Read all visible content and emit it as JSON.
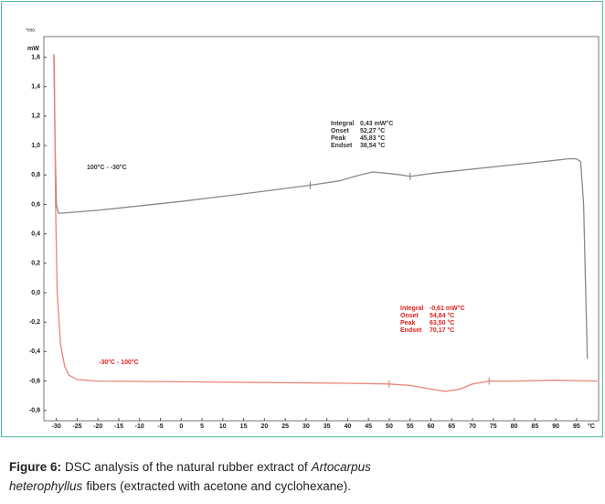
{
  "chart_data": {
    "type": "line",
    "y_unit": "mW",
    "exo_label": "°exo",
    "x_unit": "°C",
    "xlim": [
      -33,
      100.3
    ],
    "ylim": [
      -0.87,
      1.74
    ],
    "xticks": [
      -30,
      -25,
      -20,
      -15,
      -10,
      -5,
      0,
      5,
      10,
      15,
      20,
      25,
      30,
      35,
      40,
      45,
      50,
      55,
      60,
      65,
      70,
      75,
      80,
      85,
      90,
      95
    ],
    "yticks": [
      {
        "value": -0.8,
        "label": "-0,8"
      },
      {
        "value": -0.6,
        "label": "-0,6"
      },
      {
        "value": -0.4,
        "label": "-0,4"
      },
      {
        "value": -0.2,
        "label": "-0,2"
      },
      {
        "value": 0,
        "label": "0,0"
      },
      {
        "value": 0.2,
        "label": "0,2"
      },
      {
        "value": 0.4,
        "label": "0,4"
      },
      {
        "value": 0.6,
        "label": "0,6"
      },
      {
        "value": 0.8,
        "label": "0,8"
      },
      {
        "value": 1.0,
        "label": "1,0"
      },
      {
        "value": 1.2,
        "label": "1,2"
      },
      {
        "value": 1.4,
        "label": "1,4"
      },
      {
        "value": 1.6,
        "label": "1,6"
      }
    ],
    "series": [
      {
        "name": "100°C - -30°C",
        "color": "#8a8a8a",
        "text_color": "#333333",
        "x": [
          -30.6,
          -30.3,
          -30,
          -29.5,
          -29,
          -20,
          0,
          20,
          31,
          38,
          43,
          46,
          50,
          53,
          55,
          60,
          80,
          90,
          93,
          95,
          96,
          96.7,
          97.2,
          97.6
        ],
        "values": [
          1.62,
          1.0,
          0.6,
          0.54,
          0.54,
          0.56,
          0.62,
          0.69,
          0.73,
          0.76,
          0.8,
          0.82,
          0.81,
          0.8,
          0.79,
          0.81,
          0.87,
          0.9,
          0.91,
          0.91,
          0.89,
          0.6,
          0.0,
          -0.45
        ],
        "integration_limits": [
          31,
          55
        ],
        "annotation": [
          [
            "Integral",
            "0,43 mW°C"
          ],
          [
            "Onset",
            "52,27 °C"
          ],
          [
            "Peak",
            "45,83 °C"
          ],
          [
            "Endset",
            "38,54 °C"
          ]
        ]
      },
      {
        "name": "-30°C - 100°C",
        "color": "#e8857c",
        "text_color": "#e0201c",
        "x": [
          -30.5,
          -30.2,
          -29.8,
          -29,
          -28,
          -27,
          -25,
          -20,
          0,
          20,
          40,
          50,
          55,
          60,
          63.5,
          67,
          70,
          74,
          80,
          90,
          100
        ],
        "values": [
          1.6,
          0.6,
          0.0,
          -0.35,
          -0.5,
          -0.56,
          -0.59,
          -0.6,
          -0.605,
          -0.61,
          -0.615,
          -0.62,
          -0.63,
          -0.655,
          -0.67,
          -0.655,
          -0.62,
          -0.6,
          -0.6,
          -0.595,
          -0.6
        ],
        "integration_limits": [
          50,
          74
        ],
        "annotation": [
          [
            "Integral",
            "-0,61 mW°C"
          ],
          [
            "Onset",
            "54,84 °C"
          ],
          [
            "Peak",
            "63,50 °C"
          ],
          [
            "Endset",
            "70,17 °C"
          ]
        ]
      }
    ]
  },
  "caption": {
    "label": "Figure 6:",
    "text_1": "DSC analysis of the natural rubber extract of",
    "italic_1": "Artocarpus",
    "italic_2": "heterophyllus",
    "text_2": "fibers (extracted with acetone and cyclohexane)."
  }
}
